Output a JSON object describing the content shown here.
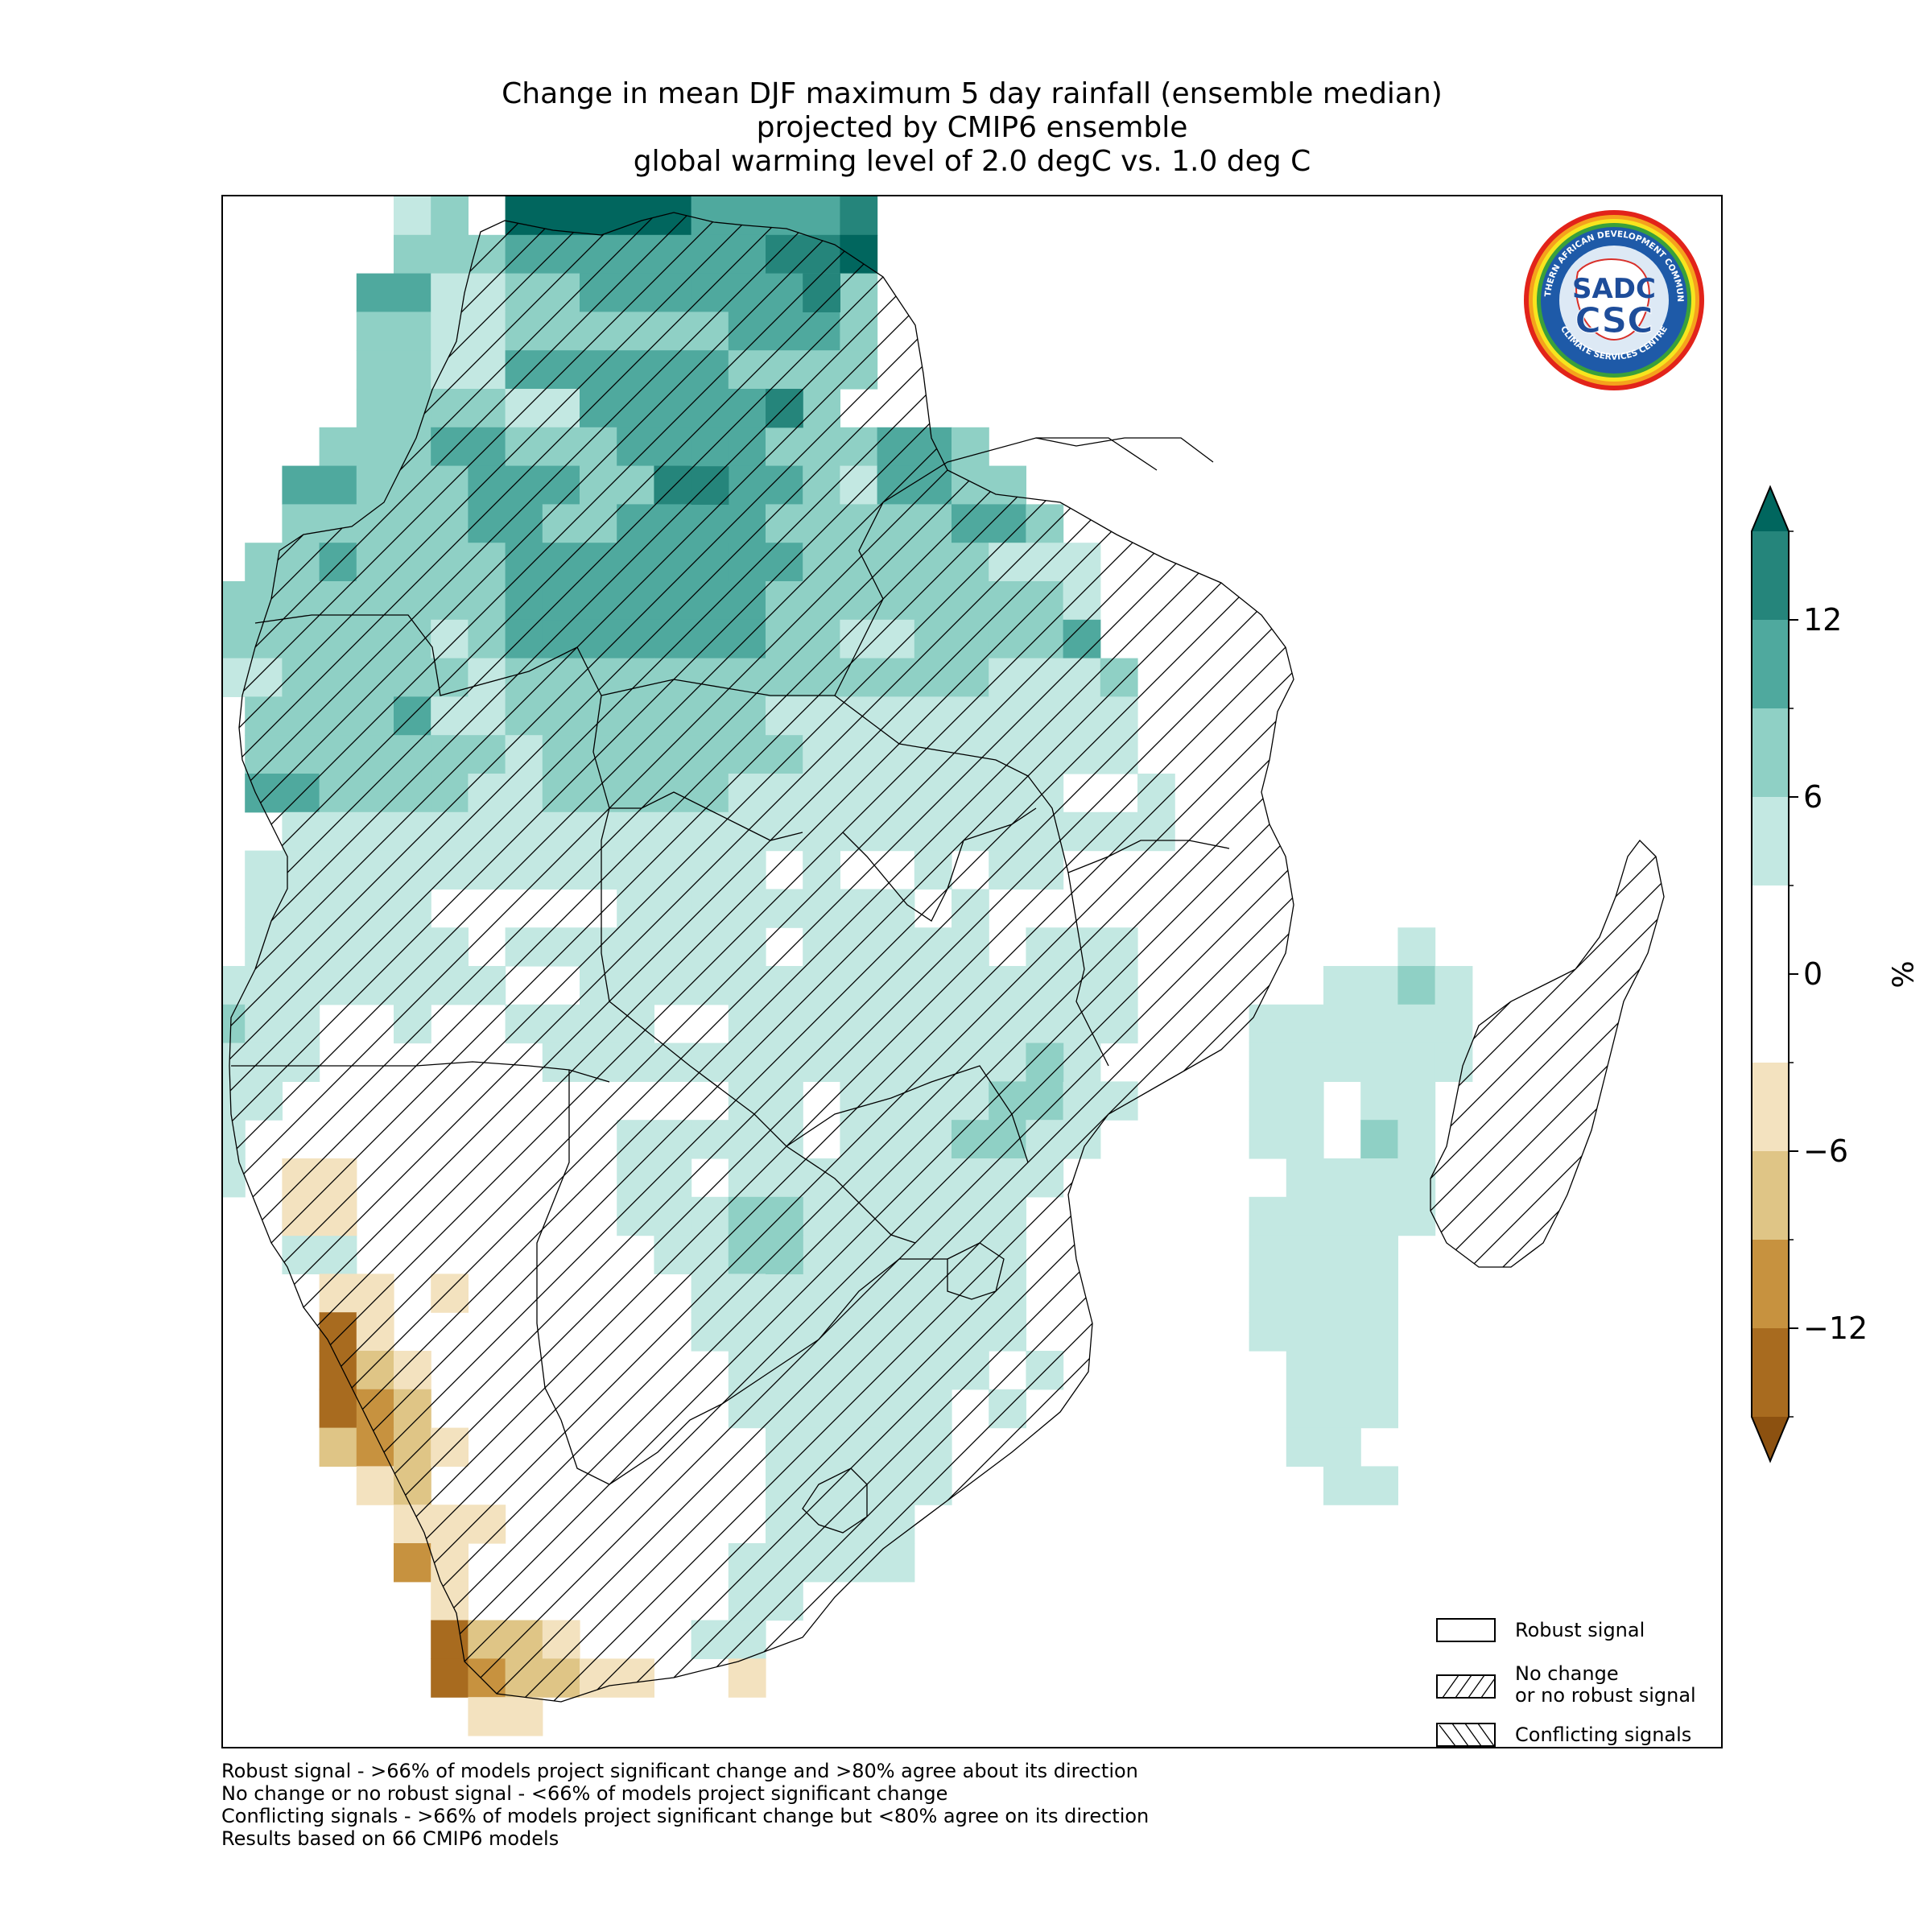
{
  "title_lines": [
    "Change in mean DJF maximum 5 day rainfall (ensemble median)",
    "projected by CMIP6 ensemble",
    "global warming level of 2.0 degC vs. 1.0 deg C"
  ],
  "logo": {
    "icon": "sadc-csc-logo",
    "ring_text_top": "SOUTHERN AFRICAN DEVELOPMENT COMMUNITY",
    "ring_text_bottom": "CLIMATE SERVICES CENTRE",
    "monogram_top": "SADC",
    "monogram_bottom": "CSC"
  },
  "legend": [
    {
      "key": "robust",
      "label_lines": [
        "Robust signal"
      ],
      "pattern": "none"
    },
    {
      "key": "no_change",
      "label_lines": [
        "No change",
        "or no robust signal"
      ],
      "pattern": "forward-diagonal"
    },
    {
      "key": "conflicting",
      "label_lines": [
        "Conflicting signals"
      ],
      "pattern": "backward-diagonal"
    }
  ],
  "footnotes": [
    "Robust signal - >66% of models project significant change and >80% agree about its direction",
    "No change or no robust signal - <66% of models project significant change",
    "Conflicting signals - >66% of models project significant change but <80% agree on its direction",
    "Results based on 66 CMIP6 models"
  ],
  "colorbar": {
    "unit": "%",
    "min": -15,
    "max": 15,
    "extend": "both",
    "ticks": [
      12,
      6,
      0,
      -6,
      -12
    ],
    "tick_labels": [
      "12",
      "6",
      "0",
      "−6",
      "−12"
    ],
    "levels": [
      -15,
      -12,
      -9,
      -6,
      -3,
      3,
      6,
      9,
      12,
      15
    ],
    "colors": [
      "#a86b1f",
      "#c7923f",
      "#dfc586",
      "#f3e2bf",
      "#ffffff",
      "#c3e8e2",
      "#8fd0c5",
      "#4fa99e",
      "#25857b"
    ],
    "under_color": "#8c5110",
    "over_color": "#00665e"
  },
  "map": {
    "colors": {
      "t1": "#c3e8e2",
      "t2": "#8fd0c5",
      "t3": "#4fa99e",
      "t4": "#25857b",
      "t5": "#01665e",
      "b1": "#f3e2bf",
      "b2": "#dfc586",
      "b3": "#c7923f",
      "b4": "#a86b1f"
    }
  }
}
